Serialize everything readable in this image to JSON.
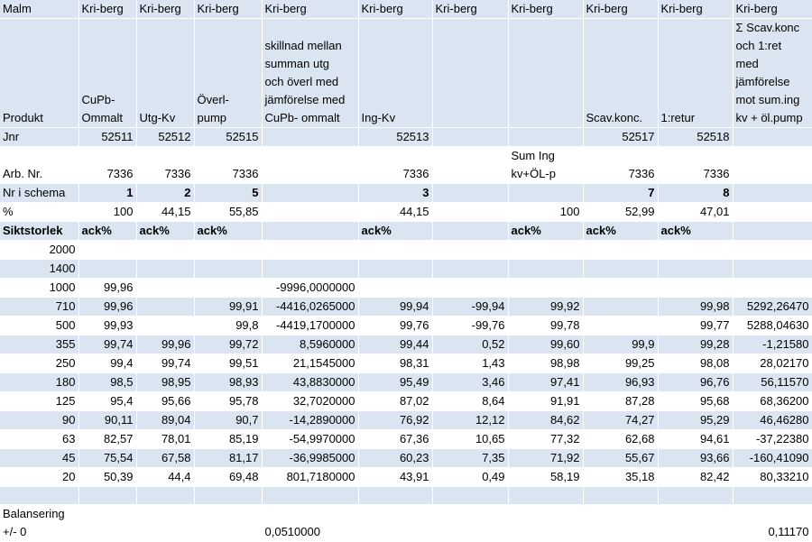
{
  "header_row": {
    "label": "Malm",
    "cols": [
      "Kri-berg",
      "Kri-berg",
      "Kri-berg",
      "Kri-berg",
      "Kri-berg",
      "Kri-berg",
      "Kri-berg",
      "Kri-berg",
      "Kri-berg",
      "Kri-berg"
    ]
  },
  "product_row": {
    "label": "Produkt",
    "cols": [
      "CuPb-\nOmmalt",
      "Utg-Kv",
      "Överl-\npump",
      "skillnad mellan\nsumman utg\noch överl med\njämförelse med\nCuPb- ommalt",
      "Ing-Kv",
      "",
      "",
      "Scav.konc.",
      "1:retur",
      "Σ  Scav.konc\noch 1:ret\nmed\njämförelse\nmot sum.ing\nkv + öl.pump"
    ]
  },
  "jnr_row": {
    "label": "Jnr",
    "cols": [
      "52511",
      "52512",
      "52515",
      "",
      "52513",
      "",
      "",
      "52517",
      "52518",
      ""
    ]
  },
  "arb_row": {
    "label": "Arb. Nr.",
    "cols": [
      "7336",
      "7336",
      "7336",
      "",
      "7336",
      "",
      "Sum Ing\nkv+ÖL-p",
      "7336",
      "7336",
      ""
    ]
  },
  "schema_row": {
    "label": "Nr i schema",
    "cols": [
      "1",
      "2",
      "5",
      "",
      "3",
      "",
      "",
      "7",
      "8",
      ""
    ]
  },
  "pct_row": {
    "label": "%",
    "cols": [
      "100",
      "44,15",
      "55,85",
      "",
      "44,15",
      "",
      "100",
      "52,99",
      "47,01",
      ""
    ]
  },
  "sikt_row": {
    "label": "Siktstorlek",
    "cols": [
      "ack%",
      "ack%",
      "ack%",
      "",
      "ack%",
      "",
      "ack%",
      "ack%",
      "ack%",
      ""
    ]
  },
  "data_rows": [
    {
      "size": "2000",
      "cols": [
        "",
        "",
        "",
        "",
        "",
        "",
        "",
        "",
        "",
        ""
      ]
    },
    {
      "size": "1400",
      "cols": [
        "",
        "",
        "",
        "",
        "",
        "",
        "",
        "",
        "",
        ""
      ]
    },
    {
      "size": "1000",
      "cols": [
        "99,96",
        "",
        "",
        "-9996,0000000",
        "",
        "",
        "",
        "",
        "",
        ""
      ]
    },
    {
      "size": "710",
      "cols": [
        "99,96",
        "",
        "99,91",
        "-4416,0265000",
        "99,94",
        "-99,94",
        "99,92",
        "",
        "99,98",
        "5292,26470"
      ]
    },
    {
      "size": "500",
      "cols": [
        "99,93",
        "",
        "99,8",
        "-4419,1700000",
        "99,76",
        "-99,76",
        "99,78",
        "",
        "99,77",
        "5288,04630"
      ]
    },
    {
      "size": "355",
      "cols": [
        "99,74",
        "99,96",
        "99,72",
        "8,5960000",
        "99,44",
        "0,52",
        "99,60",
        "99,9",
        "99,28",
        "-1,21580"
      ]
    },
    {
      "size": "250",
      "cols": [
        "99,4",
        "99,74",
        "99,51",
        "21,1545000",
        "98,31",
        "1,43",
        "98,98",
        "99,25",
        "98,08",
        "28,02170"
      ]
    },
    {
      "size": "180",
      "cols": [
        "98,5",
        "98,95",
        "98,93",
        "43,8830000",
        "95,49",
        "3,46",
        "97,41",
        "96,93",
        "96,76",
        "56,11570"
      ]
    },
    {
      "size": "125",
      "cols": [
        "95,4",
        "95,66",
        "95,78",
        "32,7020000",
        "87,02",
        "8,64",
        "91,91",
        "87,28",
        "95,68",
        "68,36200"
      ]
    },
    {
      "size": "90",
      "cols": [
        "90,11",
        "89,04",
        "90,7",
        "-14,2890000",
        "76,92",
        "12,12",
        "84,62",
        "74,27",
        "95,29",
        "46,46280"
      ]
    },
    {
      "size": "63",
      "cols": [
        "82,57",
        "78,01",
        "85,19",
        "-54,9970000",
        "67,36",
        "10,65",
        "77,32",
        "62,68",
        "94,61",
        "-37,22380"
      ]
    },
    {
      "size": "45",
      "cols": [
        "75,54",
        "67,58",
        "81,17",
        "-36,9985000",
        "60,23",
        "7,35",
        "71,92",
        "55,67",
        "93,66",
        "-160,41090"
      ]
    },
    {
      "size": "20",
      "cols": [
        "50,39",
        "44,4",
        "69,48",
        "801,7180000",
        "43,91",
        "0,49",
        "58,19",
        "35,18",
        "82,42",
        "80,33210"
      ]
    }
  ],
  "empty_row": {
    "cols": [
      "",
      "",
      "",
      "",
      "",
      "",
      "",
      "",
      "",
      "",
      ""
    ]
  },
  "balance_row": {
    "label": "Balansering\n+/- 0",
    "cols": [
      "",
      "",
      "",
      "0,0510000",
      "",
      "",
      "",
      "",
      "",
      "0,11170"
    ]
  }
}
